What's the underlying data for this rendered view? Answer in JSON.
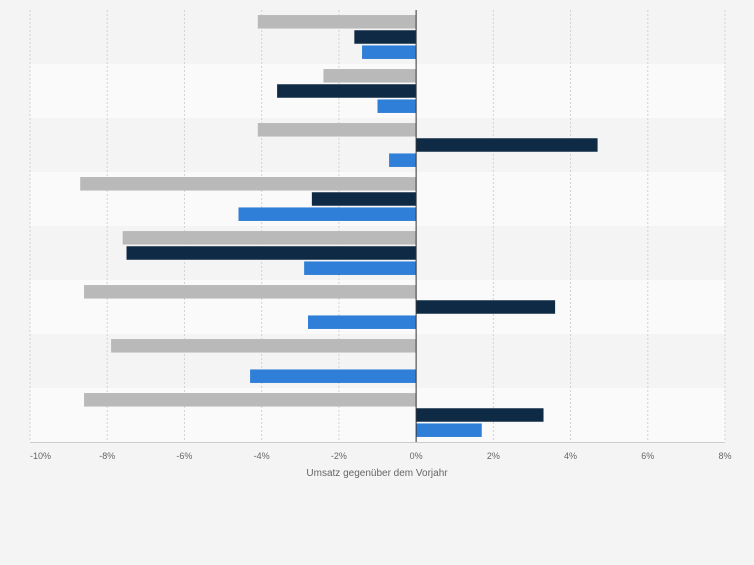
{
  "chart_data": {
    "type": "bar",
    "orientation": "horizontal",
    "categories": [
      "",
      "",
      "",
      "",
      "",
      "",
      "",
      ""
    ],
    "series": [
      {
        "color": "#b9b9b9",
        "values": [
          -4.1,
          -2.4,
          -4.1,
          -8.7,
          -7.6,
          -8.6,
          -7.9,
          -8.6
        ]
      },
      {
        "color": "#0f2a44",
        "values": [
          -1.6,
          -3.6,
          4.7,
          -2.7,
          -7.5,
          3.6,
          0,
          3.3
        ]
      },
      {
        "color": "#2f7ed8",
        "values": [
          -1.4,
          -1.0,
          -0.7,
          -4.6,
          -2.9,
          -2.8,
          -4.3,
          1.7
        ]
      }
    ],
    "xlim": [
      -10,
      8
    ],
    "xticks": [
      -10,
      -8,
      -6,
      -4,
      -2,
      0,
      2,
      4,
      6,
      8
    ],
    "tick_labels": [
      "-10%",
      "-8%",
      "-6%",
      "-4%",
      "-2%",
      "0%",
      "2%",
      "4%",
      "6%",
      "8%"
    ],
    "xlabel": "Umsatz gegenüber dem Vorjahr",
    "grid": "vertical-dashed",
    "band_colors": [
      "#f4f4f4",
      "#fafafa"
    ],
    "legend": "none"
  }
}
